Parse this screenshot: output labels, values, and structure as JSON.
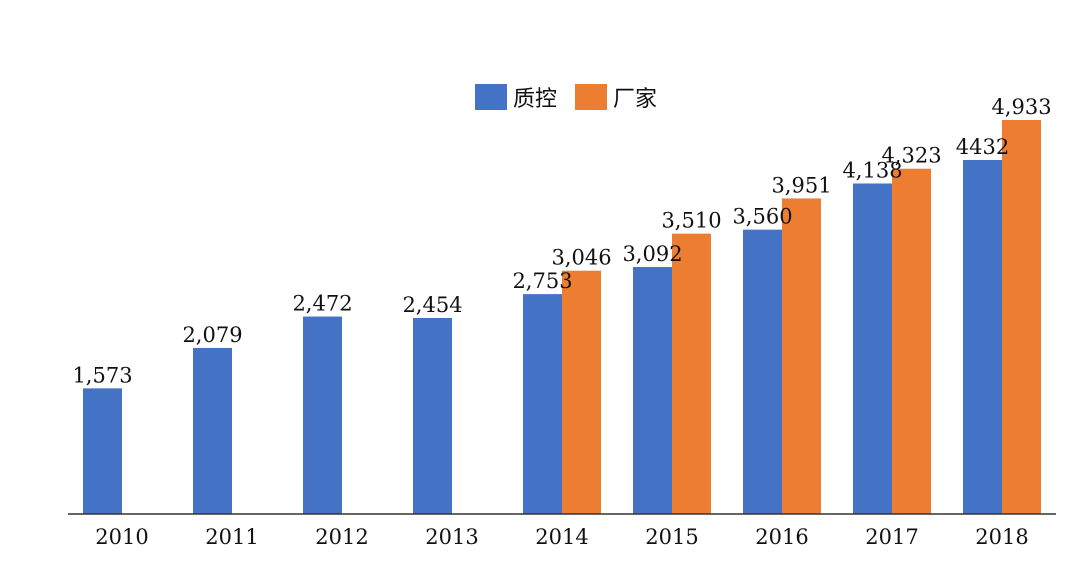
{
  "chart_data": {
    "type": "bar",
    "categories": [
      "2010",
      "2011",
      "2012",
      "2013",
      "2014",
      "2015",
      "2016",
      "2017",
      "2018"
    ],
    "series": [
      {
        "name": "质控",
        "color": "#4472C4",
        "values": [
          1573,
          2079,
          2472,
          2454,
          2753,
          3092,
          3560,
          4138,
          4432
        ],
        "labels": [
          "1,573",
          "2,079",
          "2,472",
          "2,454",
          "2,753",
          "3,092",
          "3,560",
          "4,138",
          "4432"
        ]
      },
      {
        "name": "厂家",
        "color": "#ED7D31",
        "values": [
          null,
          null,
          null,
          null,
          3046,
          3510,
          3951,
          4323,
          4933
        ],
        "labels": [
          null,
          null,
          null,
          null,
          "3,046",
          "3,510",
          "3,951",
          "4,323",
          "4,933"
        ]
      }
    ],
    "ylim": [
      0,
      4933
    ],
    "grid": false,
    "legend": "top-center",
    "axis_color": "#333333"
  }
}
